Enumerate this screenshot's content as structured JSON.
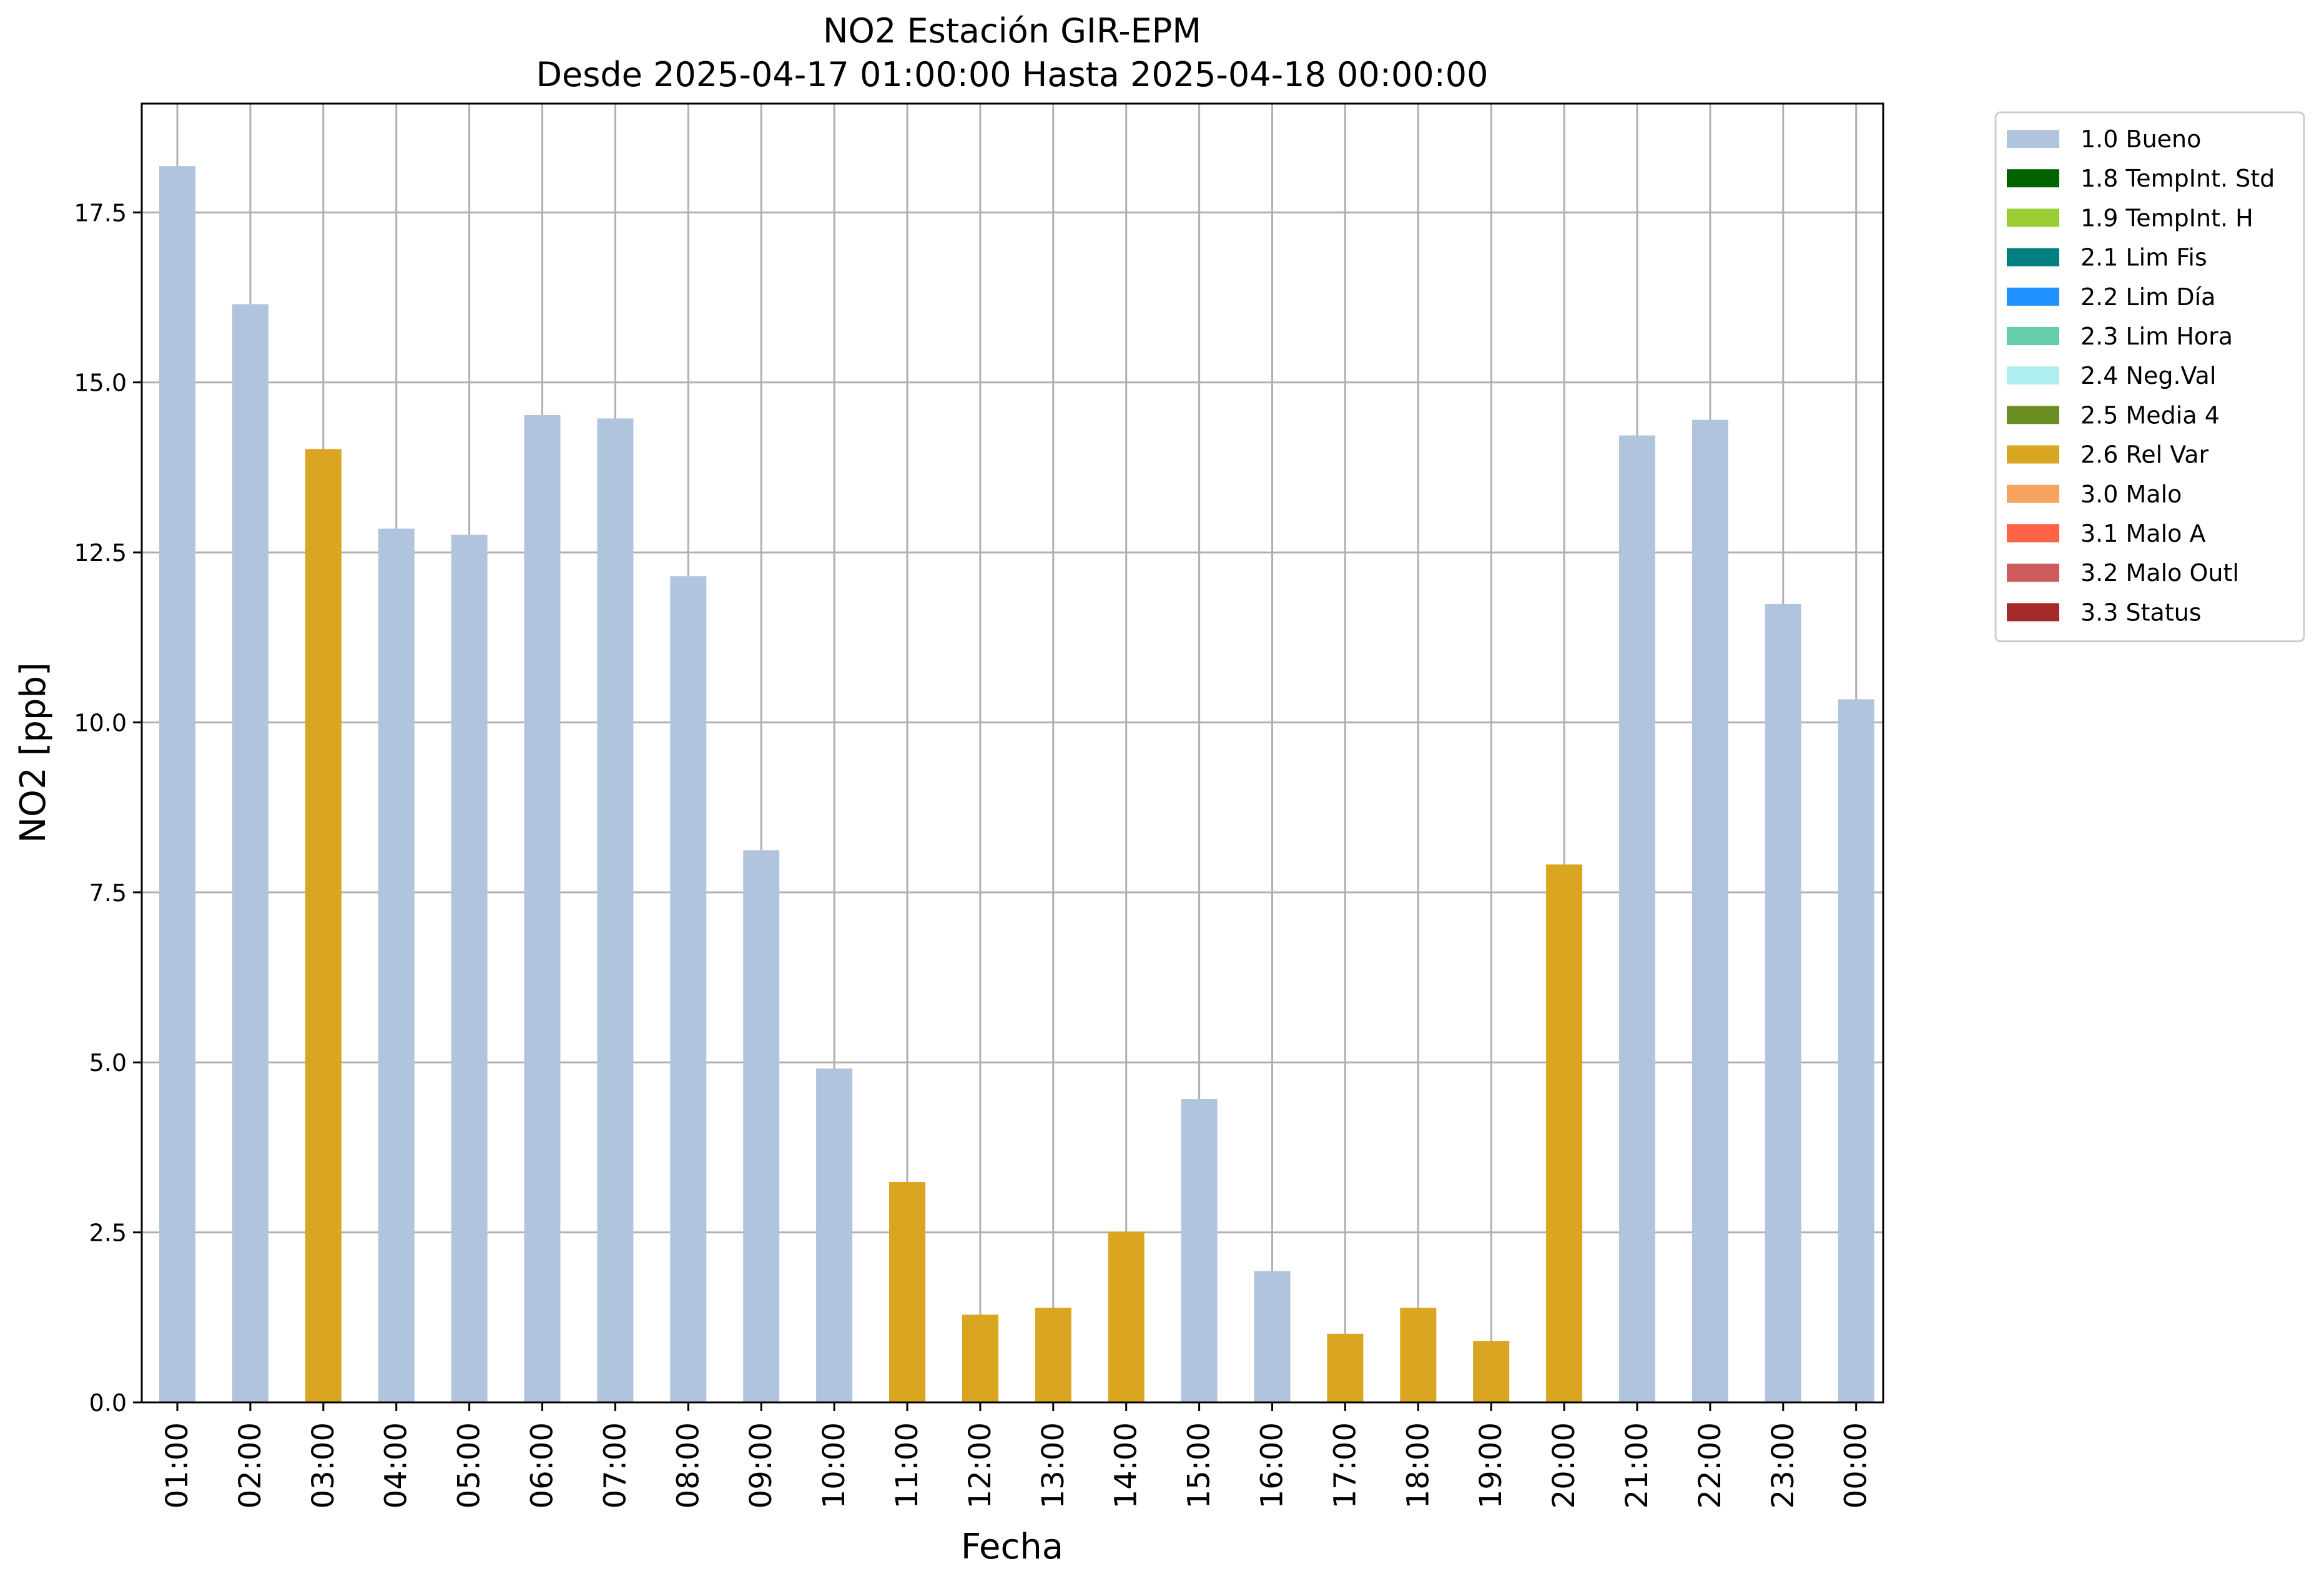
{
  "chart_data": {
    "type": "bar",
    "title": "NO2 Estación GIR-EPM",
    "subtitle": "Desde 2025-04-17 01:00:00 Hasta 2025-04-18 00:00:00",
    "xlabel": "Fecha",
    "ylabel": "NO2 [ppb]",
    "ylim": [
      0,
      19.1
    ],
    "yticks": [
      "0.0",
      "2.5",
      "5.0",
      "7.5",
      "10.0",
      "12.5",
      "15.0",
      "17.5"
    ],
    "grid": true,
    "legend_position": "outside-top-right",
    "categories": [
      "01:00",
      "02:00",
      "03:00",
      "04:00",
      "05:00",
      "06:00",
      "07:00",
      "08:00",
      "09:00",
      "10:00",
      "11:00",
      "12:00",
      "13:00",
      "14:00",
      "15:00",
      "16:00",
      "17:00",
      "18:00",
      "19:00",
      "20:00",
      "21:00",
      "22:00",
      "23:00",
      "00:00"
    ],
    "values": [
      18.18,
      16.15,
      14.02,
      12.85,
      12.76,
      14.52,
      14.47,
      12.15,
      8.12,
      4.91,
      3.24,
      1.29,
      1.39,
      2.51,
      4.46,
      1.93,
      1.01,
      1.39,
      0.9,
      7.91,
      14.22,
      14.45,
      11.74,
      10.34
    ],
    "flags": [
      "1.0",
      "1.0",
      "2.6",
      "1.0",
      "1.0",
      "1.0",
      "1.0",
      "1.0",
      "1.0",
      "1.0",
      "2.6",
      "2.6",
      "2.6",
      "2.6",
      "1.0",
      "1.0",
      "2.6",
      "2.6",
      "2.6",
      "2.6",
      "1.0",
      "1.0",
      "1.0",
      "1.0"
    ],
    "legend": [
      {
        "code": "1.0",
        "label": "1.0 Bueno",
        "color": "#b0c4de"
      },
      {
        "code": "1.8",
        "label": "1.8 TempInt. Std",
        "color": "#006400"
      },
      {
        "code": "1.9",
        "label": "1.9 TempInt. H",
        "color": "#9acd32"
      },
      {
        "code": "2.1",
        "label": "2.1 Lim Fis",
        "color": "#008080"
      },
      {
        "code": "2.2",
        "label": "2.2 Lim Día",
        "color": "#1e90ff"
      },
      {
        "code": "2.3",
        "label": "2.3 Lim Hora",
        "color": "#66cdaa"
      },
      {
        "code": "2.4",
        "label": "2.4 Neg.Val",
        "color": "#afeeee"
      },
      {
        "code": "2.5",
        "label": "2.5 Media 4",
        "color": "#6b8e23"
      },
      {
        "code": "2.6",
        "label": "2.6 Rel Var",
        "color": "#daa520"
      },
      {
        "code": "3.0",
        "label": "3.0 Malo",
        "color": "#f4a460"
      },
      {
        "code": "3.1",
        "label": "3.1 Malo A",
        "color": "#ff6347"
      },
      {
        "code": "3.2",
        "label": "3.2 Malo Outl",
        "color": "#cd5c5c"
      },
      {
        "code": "3.3",
        "label": "3.3 Status",
        "color": "#a52a2a"
      }
    ],
    "grid_color": "#b0b0b0"
  }
}
